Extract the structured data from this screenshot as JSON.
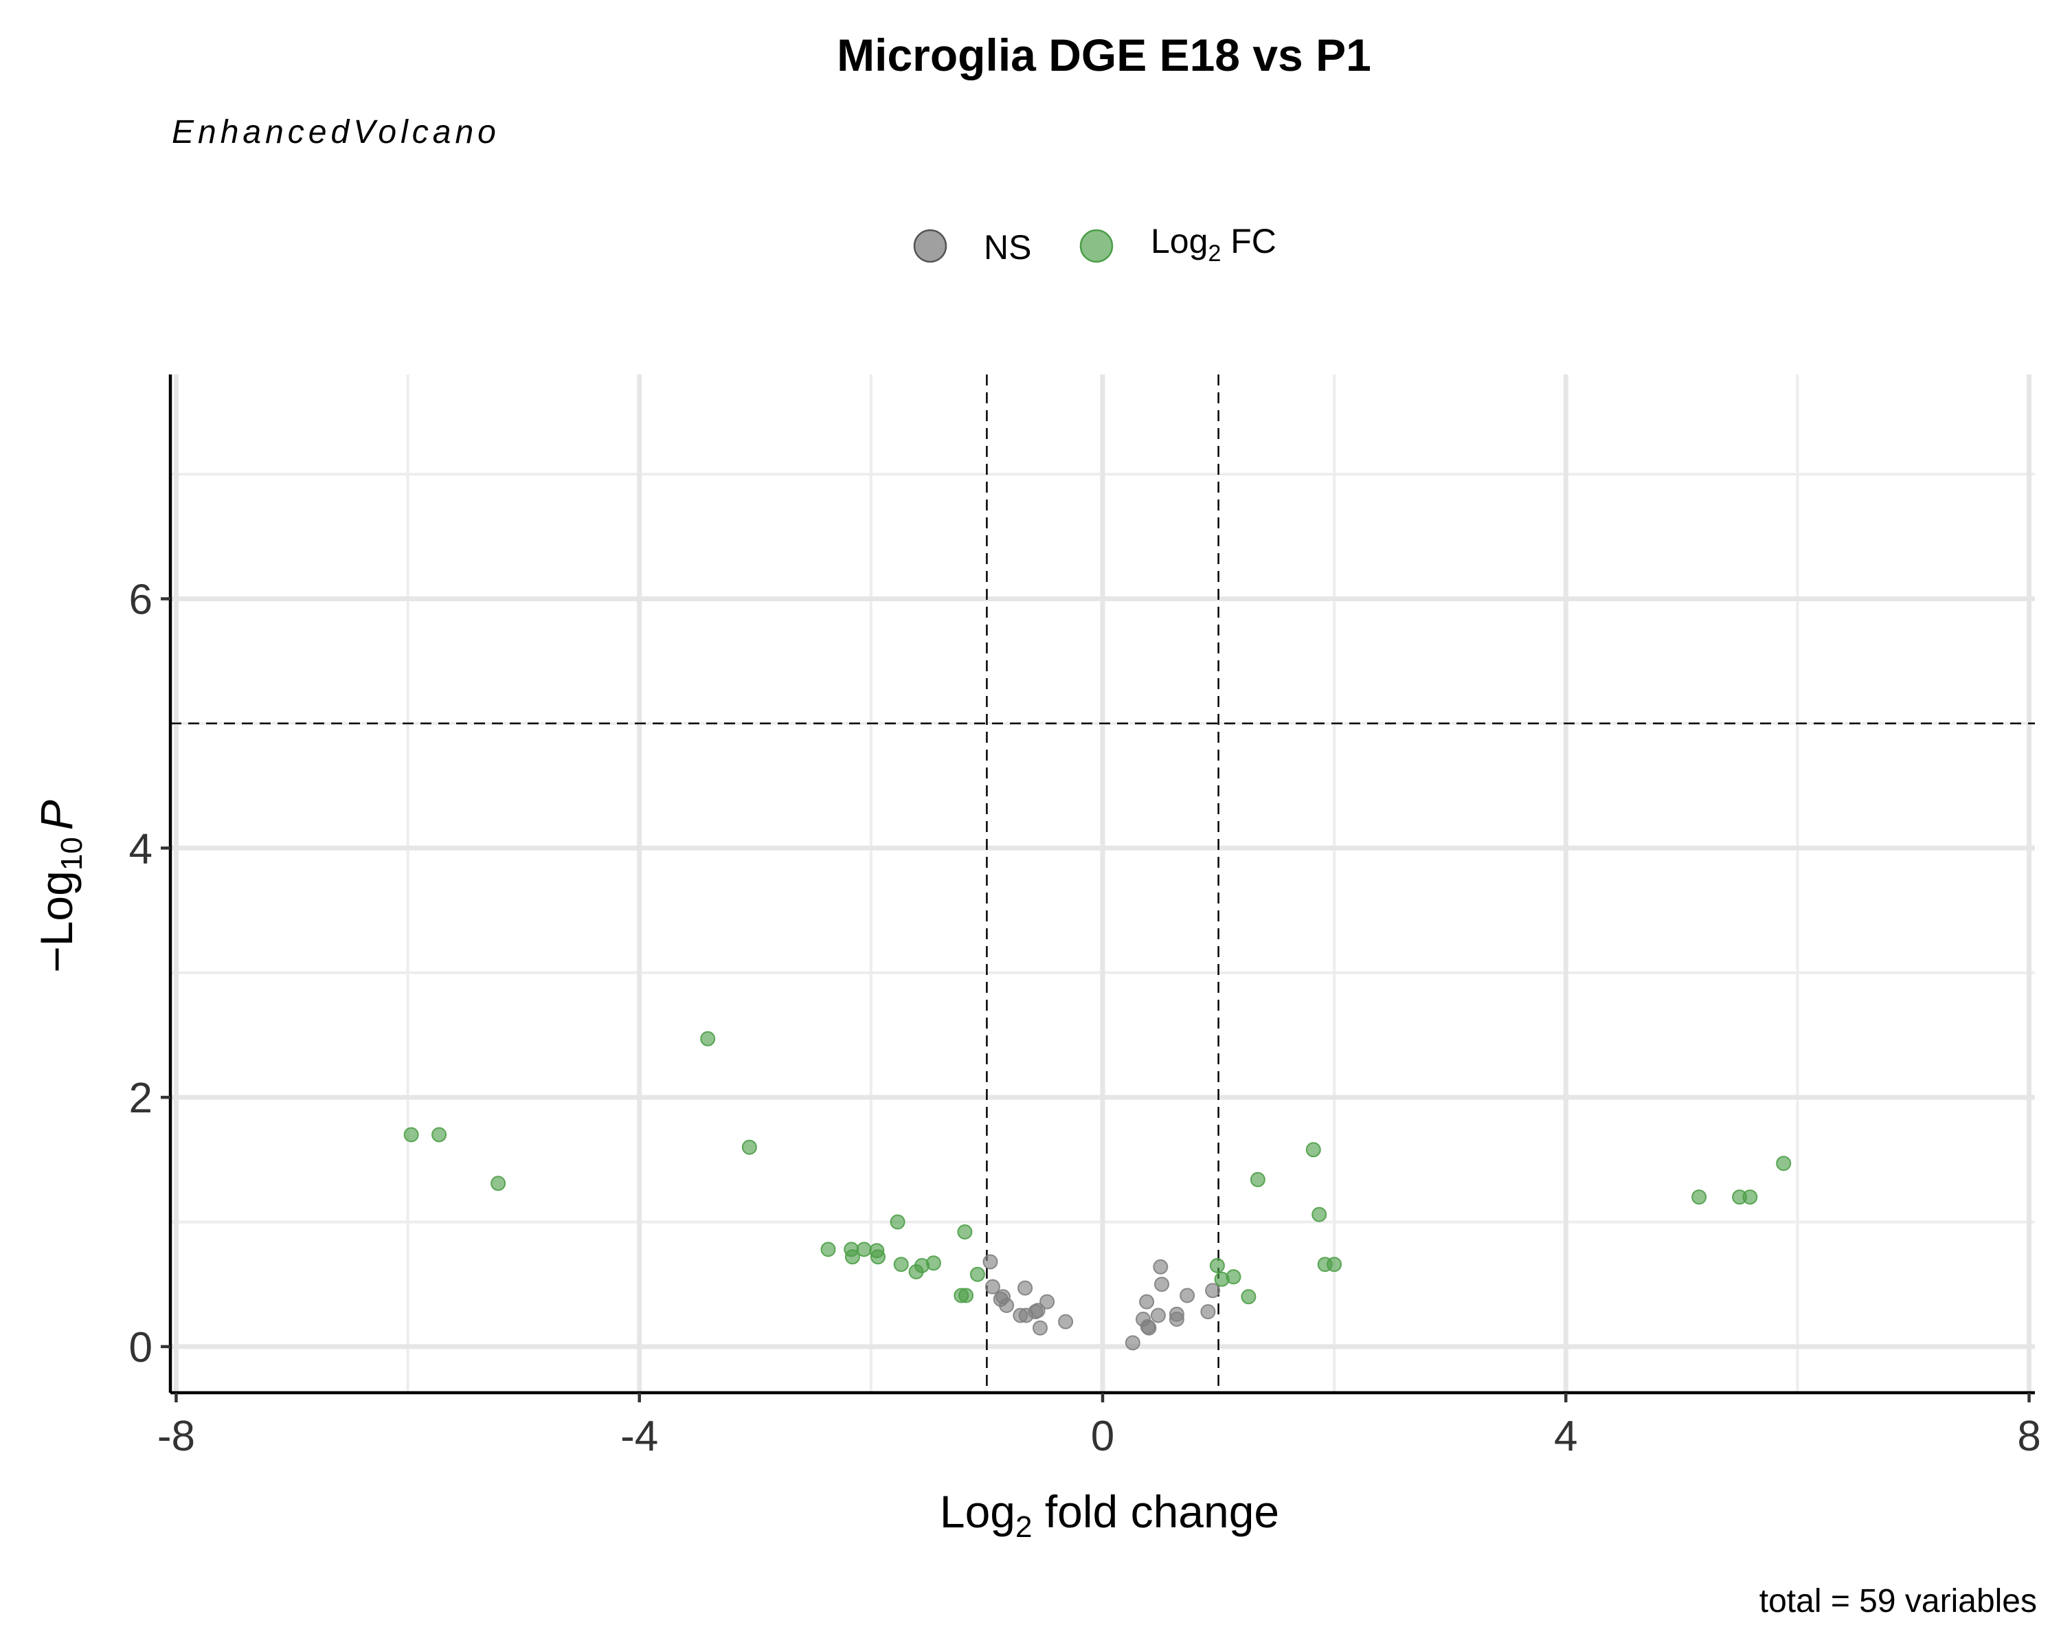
{
  "chart_data": {
    "type": "scatter",
    "title": "Microglia DGE E18 vs P1",
    "subtitle": "EnhancedVolcano",
    "caption": "total = 59 variables",
    "xlabel": {
      "base": "Log",
      "sub": "2",
      "rest": " fold change"
    },
    "ylabel": {
      "prefix": "−Log",
      "sub": "10",
      "italic": "P"
    },
    "xlim": [
      -8.05,
      8.05
    ],
    "ylim": [
      -0.37,
      7.8
    ],
    "xticks": [
      -8,
      -4,
      0,
      4,
      8
    ],
    "xtick_labels": [
      "-8",
      "-4",
      "0",
      "4",
      "8"
    ],
    "yticks": [
      0,
      2,
      4,
      6
    ],
    "ytick_labels": [
      "0",
      "2",
      "4",
      "6"
    ],
    "grid": true,
    "legend_position": "top",
    "cutoffs": {
      "fc": [
        -1,
        1
      ],
      "p_log10": 5
    },
    "colors": {
      "NS": "#808080",
      "FC": "#4c9e47"
    },
    "legend": [
      {
        "key": "NS",
        "label": "NS",
        "color": "#808080"
      },
      {
        "key": "FC",
        "label_base": "Log",
        "label_sub": "2",
        "label_rest": " FC",
        "color": "#4c9e47"
      }
    ],
    "series": [
      {
        "key": "NS",
        "points": [
          [
            -0.97,
            0.68
          ],
          [
            -0.95,
            0.48
          ],
          [
            -0.88,
            0.38
          ],
          [
            -0.86,
            0.4
          ],
          [
            -0.83,
            0.33
          ],
          [
            -0.71,
            0.25
          ],
          [
            -0.67,
            0.47
          ],
          [
            -0.66,
            0.25
          ],
          [
            -0.58,
            0.28
          ],
          [
            -0.56,
            0.29
          ],
          [
            -0.54,
            0.15
          ],
          [
            -0.48,
            0.36
          ],
          [
            -0.32,
            0.2
          ],
          [
            0.26,
            0.03
          ],
          [
            0.35,
            0.22
          ],
          [
            0.38,
            0.36
          ],
          [
            0.39,
            0.16
          ],
          [
            0.4,
            0.15
          ],
          [
            0.48,
            0.25
          ],
          [
            0.5,
            0.64
          ],
          [
            0.51,
            0.5
          ],
          [
            0.64,
            0.26
          ],
          [
            0.64,
            0.22
          ],
          [
            0.73,
            0.41
          ],
          [
            0.91,
            0.28
          ],
          [
            0.95,
            0.45
          ]
        ]
      },
      {
        "key": "FC",
        "points": [
          [
            -5.97,
            1.7
          ],
          [
            -5.73,
            1.7
          ],
          [
            -5.22,
            1.31
          ],
          [
            -3.41,
            2.47
          ],
          [
            -3.05,
            1.6
          ],
          [
            -2.37,
            0.78
          ],
          [
            -2.17,
            0.78
          ],
          [
            -2.16,
            0.72
          ],
          [
            -2.06,
            0.78
          ],
          [
            -1.95,
            0.77
          ],
          [
            -1.94,
            0.72
          ],
          [
            -1.77,
            1.0
          ],
          [
            -1.74,
            0.66
          ],
          [
            -1.61,
            0.6
          ],
          [
            -1.56,
            0.65
          ],
          [
            -1.46,
            0.67
          ],
          [
            -1.22,
            0.41
          ],
          [
            -1.18,
            0.41
          ],
          [
            -1.19,
            0.92
          ],
          [
            -1.08,
            0.58
          ],
          [
            0.99,
            0.65
          ],
          [
            1.03,
            0.54
          ],
          [
            1.13,
            0.56
          ],
          [
            1.26,
            0.4
          ],
          [
            1.34,
            1.34
          ],
          [
            1.82,
            1.58
          ],
          [
            1.87,
            1.06
          ],
          [
            1.92,
            0.66
          ],
          [
            2.0,
            0.66
          ],
          [
            5.15,
            1.2
          ],
          [
            5.5,
            1.2
          ],
          [
            5.59,
            1.2
          ],
          [
            5.88,
            1.47
          ]
        ]
      }
    ]
  }
}
